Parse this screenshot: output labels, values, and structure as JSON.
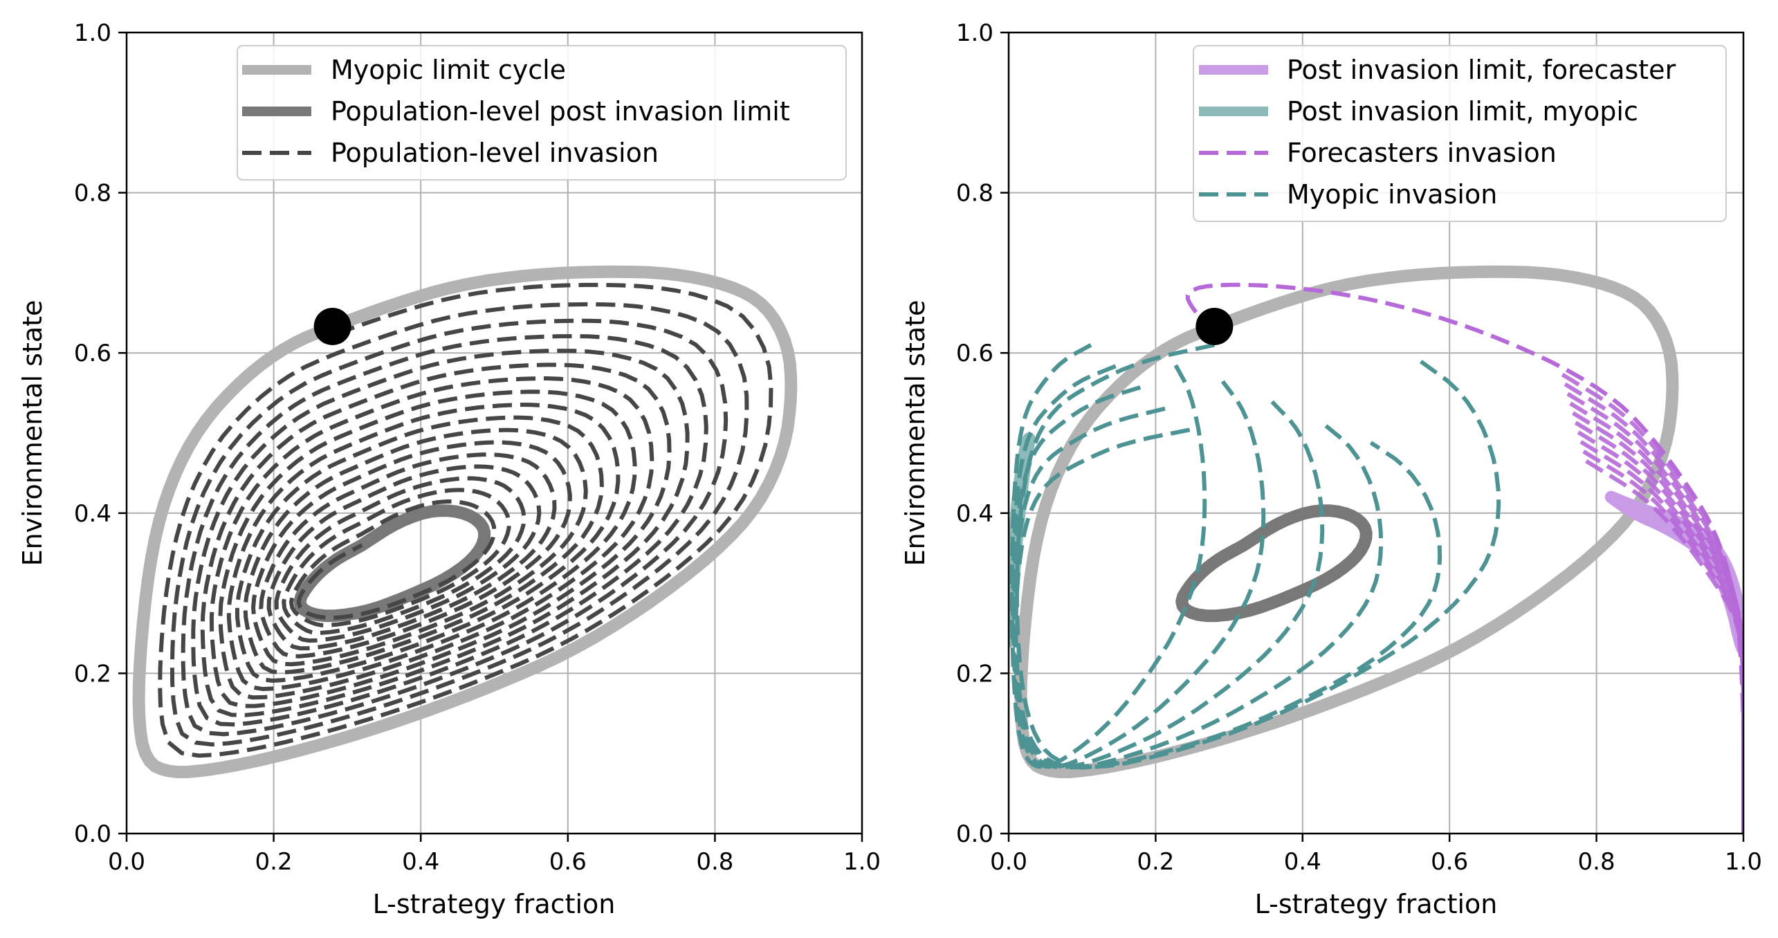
{
  "chart_data": [
    {
      "type": "line",
      "xlabel": "L-strategy fraction",
      "ylabel": "Environmental state",
      "xlim": [
        0,
        1
      ],
      "ylim": [
        0,
        1
      ],
      "xticks": [
        "0.0",
        "0.2",
        "0.4",
        "0.6",
        "0.8",
        "1.0"
      ],
      "yticks": [
        "0.0",
        "0.2",
        "0.4",
        "0.6",
        "0.8",
        "1.0"
      ],
      "grid": true,
      "legend_position": "top-right",
      "marker": {
        "x": 0.28,
        "y": 0.633,
        "color": "#000000"
      },
      "series": [
        {
          "name": "Myopic limit cycle",
          "style": "solid-thick",
          "color": "#b3b3b3",
          "points": [
            [
              0.28,
              0.633
            ],
            [
              0.36,
              0.66
            ],
            [
              0.45,
              0.685
            ],
            [
              0.55,
              0.698
            ],
            [
              0.65,
              0.702
            ],
            [
              0.74,
              0.7
            ],
            [
              0.82,
              0.685
            ],
            [
              0.87,
              0.66
            ],
            [
              0.9,
              0.61
            ],
            [
              0.905,
              0.55
            ],
            [
              0.895,
              0.48
            ],
            [
              0.86,
              0.41
            ],
            [
              0.8,
              0.35
            ],
            [
              0.7,
              0.28
            ],
            [
              0.6,
              0.225
            ],
            [
              0.5,
              0.185
            ],
            [
              0.4,
              0.15
            ],
            [
              0.3,
              0.12
            ],
            [
              0.2,
              0.095
            ],
            [
              0.12,
              0.08
            ],
            [
              0.06,
              0.075
            ],
            [
              0.025,
              0.09
            ],
            [
              0.015,
              0.15
            ],
            [
              0.02,
              0.25
            ],
            [
              0.035,
              0.36
            ],
            [
              0.06,
              0.44
            ],
            [
              0.1,
              0.51
            ],
            [
              0.16,
              0.57
            ],
            [
              0.22,
              0.61
            ],
            [
              0.28,
              0.633
            ]
          ]
        },
        {
          "name": "Population-level post invasion limit",
          "style": "solid-thick",
          "color": "#787878",
          "points": [
            [
              0.32,
              0.36
            ],
            [
              0.37,
              0.39
            ],
            [
              0.42,
              0.405
            ],
            [
              0.465,
              0.4
            ],
            [
              0.49,
              0.38
            ],
            [
              0.48,
              0.35
            ],
            [
              0.44,
              0.32
            ],
            [
              0.38,
              0.295
            ],
            [
              0.32,
              0.275
            ],
            [
              0.26,
              0.27
            ],
            [
              0.23,
              0.285
            ],
            [
              0.25,
              0.315
            ],
            [
              0.28,
              0.34
            ],
            [
              0.32,
              0.36
            ]
          ]
        },
        {
          "name": "Population-level invasion",
          "style": "dashed",
          "color": "#464646",
          "spiral": {
            "start": [
              0.28,
              0.61
            ],
            "end_cycle": "Population-level post invasion limit",
            "turns": 17
          }
        }
      ]
    },
    {
      "type": "line",
      "xlabel": "L-strategy fraction",
      "ylabel": "Environmental state",
      "xlim": [
        0,
        1
      ],
      "ylim": [
        0,
        1
      ],
      "xticks": [
        "0.0",
        "0.2",
        "0.4",
        "0.6",
        "0.8",
        "1.0"
      ],
      "yticks": [
        "0.0",
        "0.2",
        "0.4",
        "0.6",
        "0.8",
        "1.0"
      ],
      "grid": true,
      "legend_position": "top-right",
      "marker": {
        "x": 0.28,
        "y": 0.633,
        "color": "#000000"
      },
      "series": [
        {
          "name": "",
          "style": "solid-thick",
          "color": "#b3b3b3",
          "points": [
            [
              0.28,
              0.633
            ],
            [
              0.36,
              0.66
            ],
            [
              0.45,
              0.685
            ],
            [
              0.55,
              0.698
            ],
            [
              0.65,
              0.702
            ],
            [
              0.74,
              0.7
            ],
            [
              0.82,
              0.685
            ],
            [
              0.87,
              0.66
            ],
            [
              0.9,
              0.61
            ],
            [
              0.905,
              0.55
            ],
            [
              0.895,
              0.48
            ],
            [
              0.86,
              0.41
            ],
            [
              0.8,
              0.35
            ],
            [
              0.7,
              0.28
            ],
            [
              0.6,
              0.225
            ],
            [
              0.5,
              0.185
            ],
            [
              0.4,
              0.15
            ],
            [
              0.3,
              0.12
            ],
            [
              0.2,
              0.095
            ],
            [
              0.12,
              0.08
            ],
            [
              0.06,
              0.075
            ],
            [
              0.025,
              0.09
            ],
            [
              0.015,
              0.15
            ],
            [
              0.02,
              0.25
            ],
            [
              0.035,
              0.36
            ],
            [
              0.06,
              0.44
            ],
            [
              0.1,
              0.51
            ],
            [
              0.16,
              0.57
            ],
            [
              0.22,
              0.61
            ],
            [
              0.28,
              0.633
            ]
          ]
        },
        {
          "name": "",
          "style": "solid-thick",
          "color": "#787878",
          "points": [
            [
              0.32,
              0.36
            ],
            [
              0.37,
              0.39
            ],
            [
              0.42,
              0.405
            ],
            [
              0.465,
              0.4
            ],
            [
              0.49,
              0.38
            ],
            [
              0.48,
              0.35
            ],
            [
              0.44,
              0.32
            ],
            [
              0.38,
              0.295
            ],
            [
              0.32,
              0.275
            ],
            [
              0.26,
              0.27
            ],
            [
              0.23,
              0.285
            ],
            [
              0.25,
              0.315
            ],
            [
              0.28,
              0.34
            ],
            [
              0.32,
              0.36
            ]
          ]
        },
        {
          "name": "Post invasion limit, forecaster",
          "style": "solid-thick",
          "color": "#c89be6",
          "points": [
            [
              0.82,
              0.42
            ],
            [
              0.86,
              0.405
            ],
            [
              0.91,
              0.39
            ],
            [
              0.95,
              0.37
            ],
            [
              0.975,
              0.34
            ],
            [
              0.99,
              0.3
            ],
            [
              1.0,
              0.25
            ],
            [
              1.0,
              0.22
            ],
            [
              0.98,
              0.3
            ],
            [
              0.95,
              0.35
            ],
            [
              0.9,
              0.38
            ],
            [
              0.85,
              0.4
            ],
            [
              0.82,
              0.42
            ]
          ]
        },
        {
          "name": "Post invasion limit, myopic",
          "style": "solid-thick",
          "color": "#8bbab8",
          "points": [
            [
              0.0,
              0.24
            ],
            [
              0.005,
              0.33
            ],
            [
              0.012,
              0.42
            ],
            [
              0.022,
              0.48
            ],
            [
              0.03,
              0.5
            ],
            [
              0.02,
              0.45
            ],
            [
              0.01,
              0.36
            ],
            [
              0.004,
              0.28
            ],
            [
              0.0,
              0.24
            ]
          ]
        },
        {
          "name": "Forecasters invasion",
          "style": "dashed",
          "color": "#b669d8",
          "points": [
            [
              0.28,
              0.625
            ],
            [
              0.25,
              0.655
            ],
            [
              0.24,
              0.675
            ],
            [
              0.27,
              0.685
            ],
            [
              0.35,
              0.685
            ],
            [
              0.45,
              0.675
            ],
            [
              0.55,
              0.655
            ],
            [
              0.65,
              0.625
            ],
            [
              0.75,
              0.585
            ],
            [
              0.83,
              0.54
            ],
            [
              0.88,
              0.49
            ],
            [
              0.92,
              0.44
            ],
            [
              0.955,
              0.39
            ],
            [
              0.98,
              0.33
            ],
            [
              0.995,
              0.25
            ],
            [
              1.0,
              0.15
            ],
            [
              1.0,
              0.09
            ]
          ]
        },
        {
          "name": "Myopic invasion",
          "style": "dashed",
          "color": "#4e9393",
          "points": [
            [
              0.28,
              0.61
            ],
            [
              0.18,
              0.59
            ],
            [
              0.11,
              0.56
            ],
            [
              0.06,
              0.53
            ],
            [
              0.03,
              0.48
            ],
            [
              0.015,
              0.4
            ],
            [
              0.01,
              0.3
            ],
            [
              0.015,
              0.2
            ],
            [
              0.03,
              0.13
            ],
            [
              0.06,
              0.09
            ],
            [
              0.12,
              0.08
            ],
            [
              0.22,
              0.1
            ],
            [
              0.35,
              0.14
            ],
            [
              0.48,
              0.2
            ],
            [
              0.58,
              0.26
            ],
            [
              0.65,
              0.33
            ],
            [
              0.67,
              0.4
            ],
            [
              0.66,
              0.48
            ],
            [
              0.62,
              0.55
            ],
            [
              0.56,
              0.59
            ]
          ]
        }
      ]
    }
  ],
  "legends": [
    {
      "entries": [
        {
          "label": "Myopic limit cycle",
          "color": "#b3b3b3",
          "style": "solid-thick"
        },
        {
          "label": "Population-level post invasion limit",
          "color": "#787878",
          "style": "solid-thick"
        },
        {
          "label": "Population-level invasion",
          "color": "#464646",
          "style": "dashed"
        }
      ]
    },
    {
      "entries": [
        {
          "label": "Post invasion limit, forecaster",
          "color": "#c89be6",
          "style": "solid-thick"
        },
        {
          "label": "Post invasion limit, myopic",
          "color": "#8bbab8",
          "style": "solid-thick"
        },
        {
          "label": "Forecasters invasion",
          "color": "#b669d8",
          "style": "dashed"
        },
        {
          "label": "Myopic invasion",
          "color": "#4e9393",
          "style": "dashed"
        }
      ]
    }
  ]
}
